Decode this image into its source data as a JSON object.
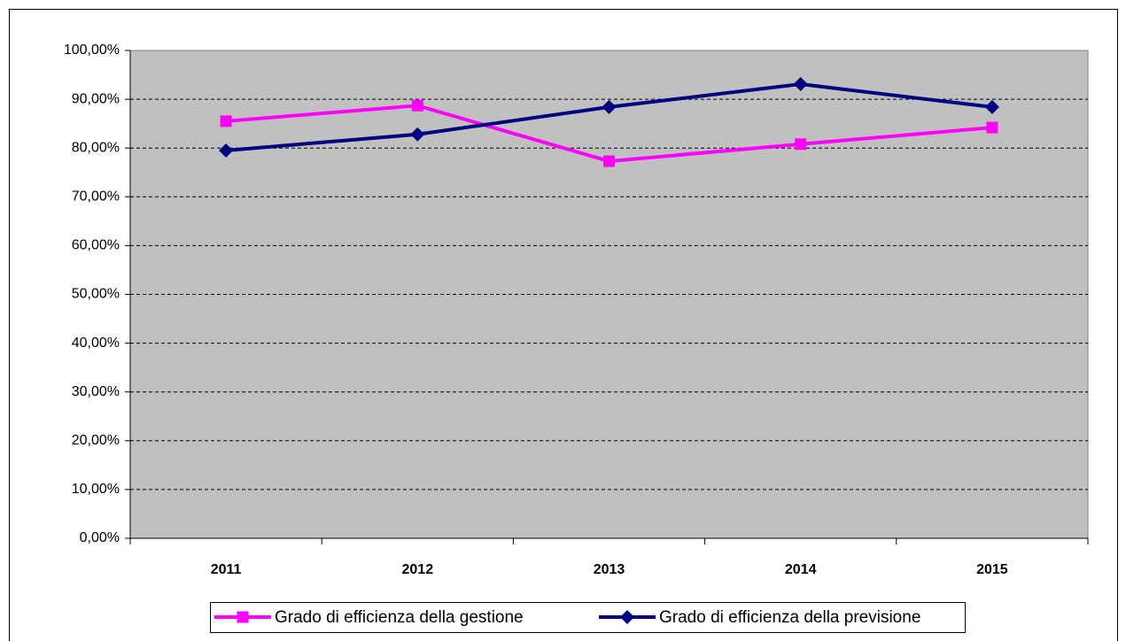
{
  "chart_data": {
    "type": "line",
    "categories": [
      "2011",
      "2012",
      "2013",
      "2014",
      "2015"
    ],
    "series": [
      {
        "name": "Grado di efficienza della gestione",
        "color": "#ff00ff",
        "marker": "square",
        "values": [
          85.5,
          88.7,
          77.3,
          80.8,
          84.2
        ]
      },
      {
        "name": "Grado di efficienza della previsione",
        "color": "#000080",
        "marker": "diamond",
        "values": [
          79.5,
          82.8,
          88.4,
          93.1,
          88.4
        ]
      }
    ],
    "ylim": [
      0,
      100
    ],
    "yticks": [
      {
        "value": 0,
        "label": "0,00%"
      },
      {
        "value": 10,
        "label": "10,00%"
      },
      {
        "value": 20,
        "label": "20,00%"
      },
      {
        "value": 30,
        "label": "30,00%"
      },
      {
        "value": 40,
        "label": "40,00%"
      },
      {
        "value": 50,
        "label": "50,00%"
      },
      {
        "value": 60,
        "label": "60,00%"
      },
      {
        "value": 70,
        "label": "70,00%"
      },
      {
        "value": 80,
        "label": "80,00%"
      },
      {
        "value": 90,
        "label": "90,00%"
      },
      {
        "value": 100,
        "label": "100,00%"
      }
    ],
    "grid": true,
    "plot_background": "#c0c0c0",
    "legend": "bottom"
  }
}
